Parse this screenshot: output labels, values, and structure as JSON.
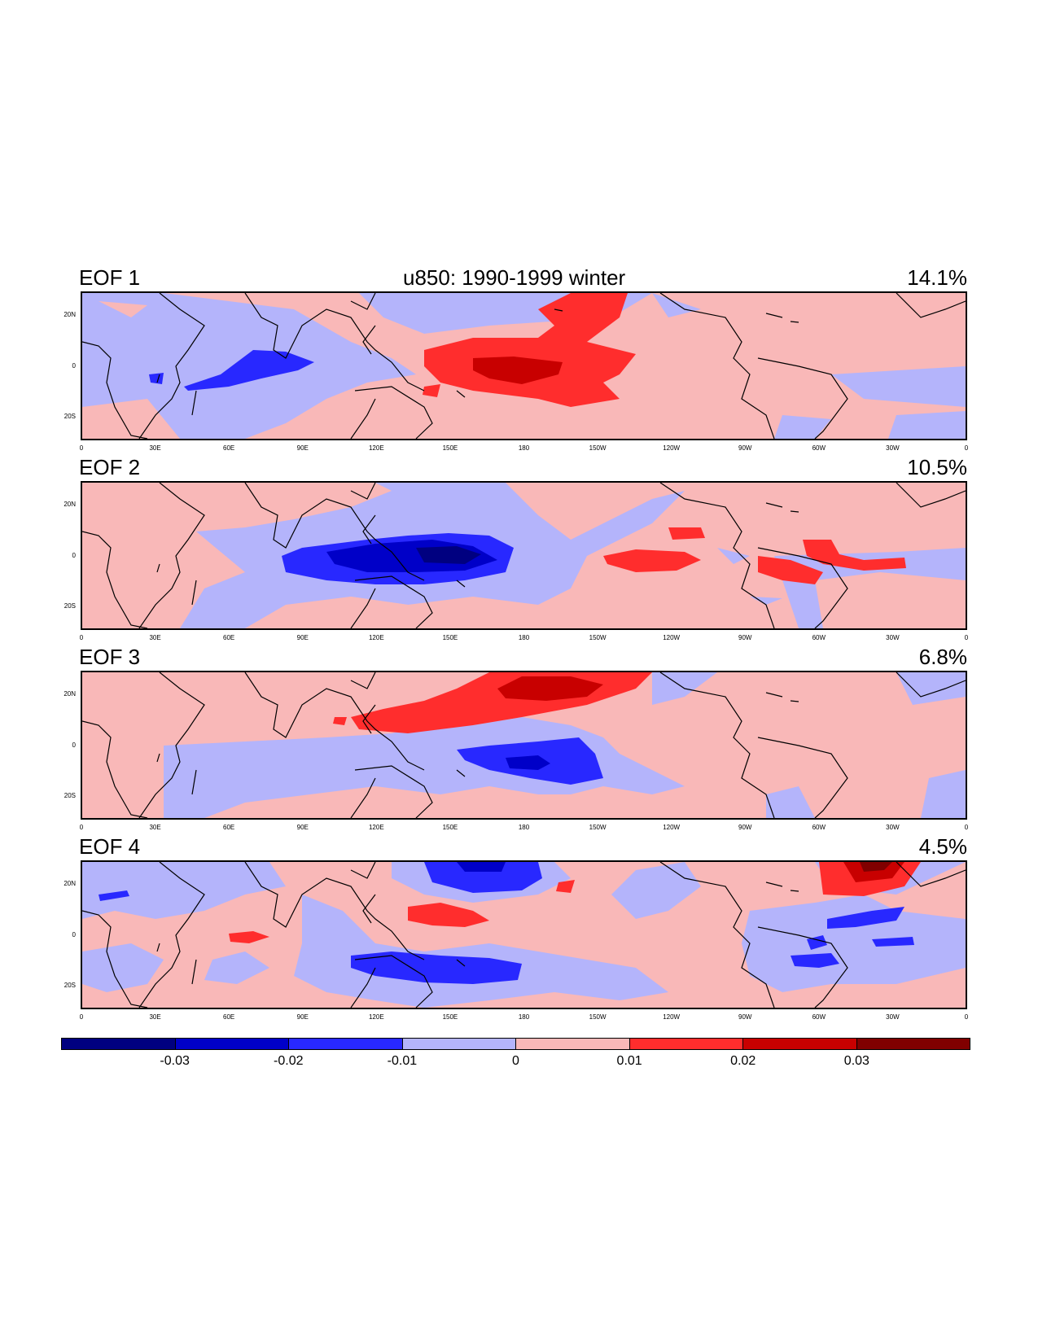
{
  "title": "u850: 1990-1999 winter",
  "x_tick_labels": [
    "0",
    "30E",
    "60E",
    "90E",
    "120E",
    "150E",
    "180",
    "150W",
    "120W",
    "90W",
    "60W",
    "30W",
    "0"
  ],
  "y_tick_labels": [
    "20N",
    "0",
    "20S"
  ],
  "panels": [
    {
      "label": "EOF 1",
      "variance": "14.1%"
    },
    {
      "label": "EOF 2",
      "variance": "10.5%"
    },
    {
      "label": "EOF 3",
      "variance": "6.8%"
    },
    {
      "label": "EOF 4",
      "variance": "4.5%"
    }
  ],
  "colorbar": {
    "colors": [
      "#000080",
      "#0000c8",
      "#2828ff",
      "#b4b4fb",
      "#f9b8b8",
      "#ff2d2d",
      "#c80000",
      "#800000"
    ],
    "labels": [
      "-0.03",
      "-0.02",
      "-0.01",
      "0",
      "0.01",
      "0.02",
      "0.03"
    ]
  }
}
